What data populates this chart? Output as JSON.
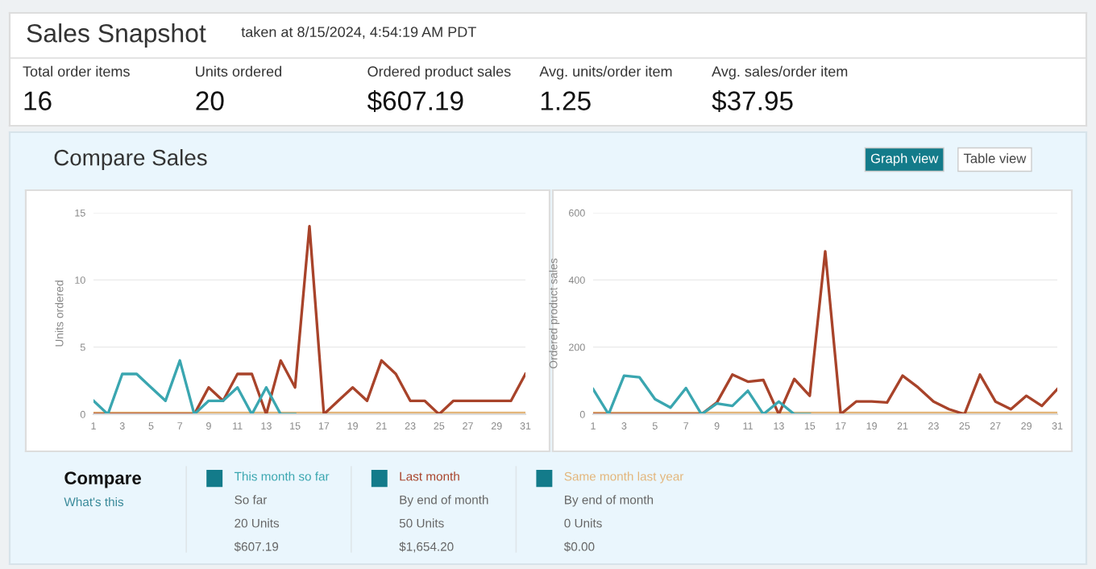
{
  "chart_data": [
    {
      "type": "other",
      "title": "Sales Snapshot",
      "subtitle": "taken at 8/15/2024, 4:54:19 AM PDT",
      "annotations": [
        "Total order items",
        "16",
        "Units ordered",
        "20",
        "Ordered product sales",
        "$607.19",
        "Avg. units/order item",
        "1.25",
        "Avg. sales/order item",
        "$37.95"
      ]
    },
    {
      "type": "other",
      "title": "Compare Sales",
      "annotations": [
        "Graph view",
        "Table view"
      ]
    },
    {
      "type": "line",
      "ylabel": "Units ordered",
      "x": [
        1,
        2,
        3,
        4,
        5,
        6,
        7,
        8,
        9,
        10,
        11,
        12,
        13,
        14,
        15,
        16,
        17,
        18,
        19,
        20,
        21,
        22,
        23,
        24,
        25,
        26,
        27,
        28,
        29,
        30,
        31
      ],
      "xlim": [
        1,
        31
      ],
      "xticks": [
        1,
        3,
        5,
        7,
        9,
        11,
        13,
        15,
        17,
        19,
        21,
        23,
        25,
        27,
        29,
        31
      ],
      "ylim": [
        0,
        15
      ],
      "yticks": [
        0,
        5,
        10,
        15
      ],
      "grid": "y",
      "marker": "none",
      "line_style": "solid",
      "series": [
        {
          "color": "#e3b57a",
          "values": [
            0,
            0,
            0,
            0,
            0,
            0,
            0,
            0,
            0,
            0,
            0,
            0,
            0,
            0,
            0,
            0,
            0,
            0,
            0,
            0,
            0,
            0,
            0,
            0,
            0,
            0,
            0,
            0,
            0,
            0,
            0
          ]
        },
        {
          "color": "#a8432a",
          "values": [
            0,
            0,
            0,
            0,
            0,
            0,
            0,
            0,
            2,
            1,
            3,
            3,
            0,
            4,
            2,
            14,
            0,
            1,
            2,
            1,
            4,
            3,
            1,
            1,
            0,
            1,
            1,
            1,
            1,
            1,
            3
          ]
        },
        {
          "color": "#3aa6b0",
          "values": [
            1,
            0,
            3,
            3,
            2,
            1,
            4,
            0,
            1,
            1,
            2,
            0,
            2,
            0,
            0,
            null,
            null,
            null,
            null,
            null,
            null,
            null,
            null,
            null,
            null,
            null,
            null,
            null,
            null,
            null,
            null
          ]
        }
      ]
    },
    {
      "type": "line",
      "ylabel": "Ordered product sales",
      "x": [
        1,
        2,
        3,
        4,
        5,
        6,
        7,
        8,
        9,
        10,
        11,
        12,
        13,
        14,
        15,
        16,
        17,
        18,
        19,
        20,
        21,
        22,
        23,
        24,
        25,
        26,
        27,
        28,
        29,
        30,
        31
      ],
      "xlim": [
        1,
        31
      ],
      "xticks": [
        1,
        3,
        5,
        7,
        9,
        11,
        13,
        15,
        17,
        19,
        21,
        23,
        25,
        27,
        29,
        31
      ],
      "ylim": [
        0,
        600
      ],
      "yticks": [
        0,
        200,
        400,
        600
      ],
      "grid": "y",
      "marker": "none",
      "line_style": "solid",
      "series": [
        {
          "color": "#e3b57a",
          "values": [
            0,
            0,
            0,
            0,
            0,
            0,
            0,
            0,
            0,
            0,
            0,
            0,
            0,
            0,
            0,
            0,
            0,
            0,
            0,
            0,
            0,
            0,
            0,
            0,
            0,
            0,
            0,
            0,
            0,
            0,
            0
          ]
        },
        {
          "color": "#a8432a",
          "values": [
            0,
            0,
            0,
            0,
            0,
            0,
            0,
            0,
            35,
            118,
            97,
            102,
            0,
            105,
            55,
            485,
            0,
            38,
            38,
            35,
            115,
            80,
            38,
            15,
            0,
            118,
            38,
            15,
            55,
            25,
            75
          ]
        },
        {
          "color": "#3aa6b0",
          "values": [
            75,
            0,
            115,
            110,
            45,
            20,
            78,
            0,
            32,
            25,
            70,
            0,
            38,
            0,
            0,
            null,
            null,
            null,
            null,
            null,
            null,
            null,
            null,
            null,
            null,
            null,
            null,
            null,
            null,
            null,
            null
          ]
        }
      ]
    },
    {
      "type": "other",
      "title": "Compare",
      "annotations": [
        "What's this",
        "This month so far",
        "So far",
        "20 Units",
        "$607.19",
        "Last month",
        "By end of month",
        "50 Units",
        "$1,654.20",
        "Same month last year",
        "By end of month",
        "0 Units",
        "$0.00"
      ]
    }
  ]
}
